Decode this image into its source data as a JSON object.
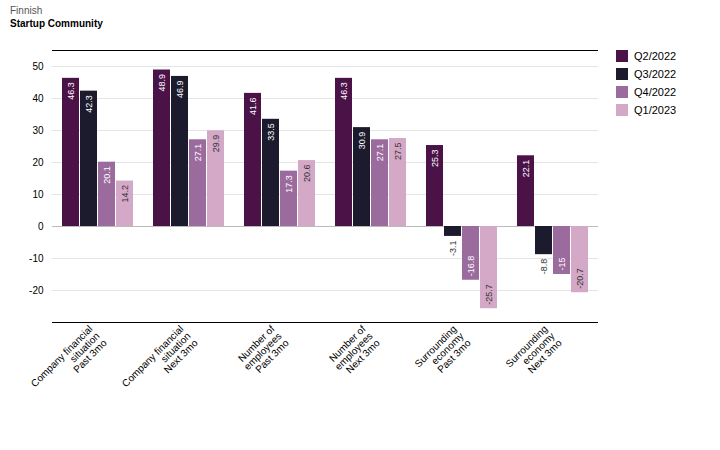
{
  "chart_data": {
    "type": "bar",
    "categories": [
      "Company financial\nsituation\nPast 3mo",
      "Company financial\nsituation\nNext 3mo",
      "Number of\nemployees\nPast 3mo",
      "Number of\nemployees\nNext 3mo",
      "Surrounding\neconomy\nPast 3mo",
      "Surrounding\neconomy\nNext 3mo"
    ],
    "series": [
      {
        "name": "Q2/2022",
        "color": "#4B1248",
        "values": [
          46.3,
          48.9,
          41.6,
          46.3,
          25.3,
          22.1
        ]
      },
      {
        "name": "Q3/2022",
        "color": "#1C1B2E",
        "values": [
          42.3,
          46.9,
          33.5,
          30.9,
          -3.1,
          -8.8
        ]
      },
      {
        "name": "Q4/2022",
        "color": "#9B6B9E",
        "values": [
          20.1,
          27.1,
          17.3,
          27.1,
          -16.8,
          -15.0
        ]
      },
      {
        "name": "Q1/2023",
        "color": "#D4A8C7",
        "values": [
          14.2,
          29.9,
          20.6,
          27.5,
          -25.7,
          -20.7
        ]
      }
    ],
    "ylim": [
      -30,
      55
    ],
    "yticks": [
      -20,
      -10,
      0,
      10,
      20,
      30,
      40,
      50
    ],
    "grid": true,
    "legend": "right",
    "data_labels": true,
    "annotations": [
      {
        "text": "Finnish"
      },
      {
        "text": "Startup Community"
      }
    ]
  }
}
